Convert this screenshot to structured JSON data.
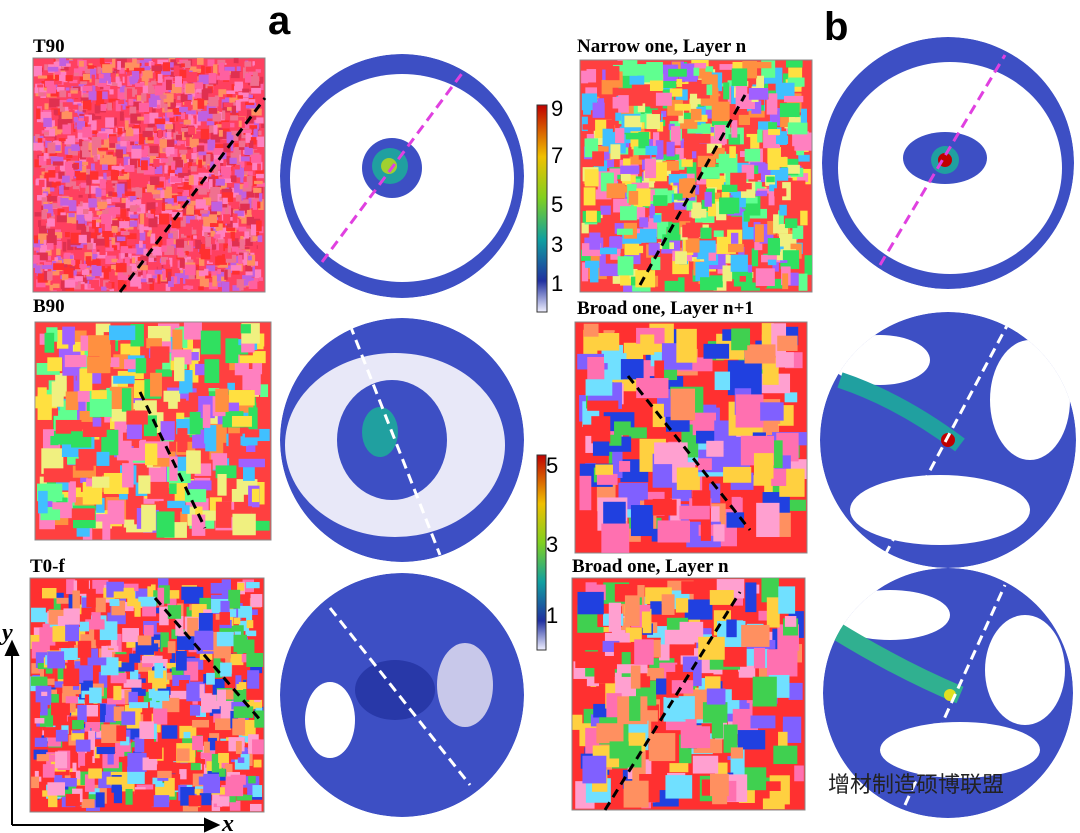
{
  "panel_labels": [
    "a",
    "b"
  ],
  "maps": [
    {
      "label": "T90"
    },
    {
      "label": "B90"
    },
    {
      "label": "T0-f"
    },
    {
      "label": "Narrow one, Layer n"
    },
    {
      "label": "Broad one, Layer n+1"
    },
    {
      "label": "Broad one, Layer n"
    }
  ],
  "colorbars": [
    {
      "ticks": [
        9,
        7,
        5,
        3,
        1
      ]
    },
    {
      "ticks": [
        5,
        3,
        1
      ]
    }
  ],
  "axes": {
    "y": "y",
    "x": "x"
  },
  "watermark": "增材制造硕博联盟"
}
